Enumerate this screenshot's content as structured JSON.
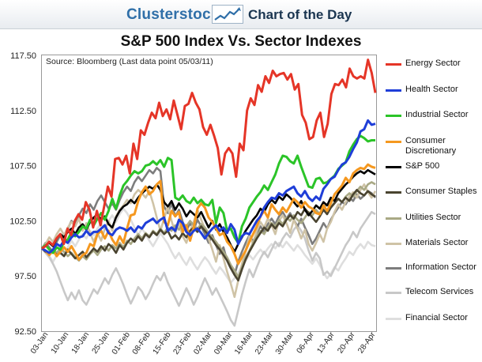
{
  "header": {
    "brand": "Clusterstock",
    "title": "Chart of the Day",
    "logo_icon": "rising-chart-icon"
  },
  "chart_data": {
    "type": "line",
    "title": "S&P 500 Index Vs. Sector Indexes",
    "source": "Source: Bloomberg (Last data point 05/03/11)",
    "xlabel": "",
    "ylabel": "",
    "ylim": [
      92.5,
      117.5
    ],
    "yticks": [
      "117.50",
      "112.50",
      "107.50",
      "102.50",
      "97.50",
      "92.50"
    ],
    "ytick_values": [
      117.5,
      112.5,
      107.5,
      102.5,
      97.5,
      92.5
    ],
    "xticks": [
      "03-Jan",
      "10-Jan",
      "18-Jan",
      "25-Jan",
      "01-Feb",
      "08-Feb",
      "15-Feb",
      "23-Feb",
      "02-Mar",
      "09-Mar",
      "16-Mar",
      "23-Mar",
      "30-Mar",
      "06-Apr",
      "13-Apr",
      "20-Apr",
      "28-Apr"
    ],
    "series": [
      {
        "name": "Energy Sector",
        "color": "#e53527",
        "width": 3,
        "values": [
          100,
          100.2,
          100.6,
          100.3,
          100.9,
          101.3,
          100.4,
          101.8,
          101.2,
          102.5,
          103.1,
          102.6,
          104.2,
          103.5,
          101.9,
          103.4,
          102.1,
          103.8,
          105.6,
          104.7,
          108.1,
          108.2,
          107.6,
          108.4,
          106.8,
          109.5,
          108.1,
          110.7,
          110.3,
          111.4,
          112.3,
          111.8,
          113.2,
          112.0,
          112.6,
          111.7,
          113.4,
          112.1,
          110.8,
          112.9,
          113.1,
          114.1,
          113.2,
          112.6,
          111.0,
          110.3,
          111.2,
          110.2,
          109.1,
          106.7,
          108.6,
          109.1,
          108.6,
          106.5,
          109.5,
          108.9,
          112.5,
          113.6,
          113.0,
          114.8,
          114.2,
          115.6,
          115.0,
          116.1,
          115.6,
          115.8,
          115.9,
          115.3,
          115.8,
          114.4,
          114.9,
          112.1,
          111.4,
          109.9,
          110.1,
          111.6,
          112.3,
          110.1,
          111.3,
          114.0,
          114.9,
          114.8,
          115.3,
          114.6,
          116.3,
          115.6,
          115.4,
          115.6,
          115.4,
          117.1,
          115.9,
          114.1
        ]
      },
      {
        "name": "Health Sector",
        "color": "#1f3ed8",
        "width": 3,
        "values": [
          100,
          99.8,
          99.6,
          99.9,
          100.4,
          100.2,
          100.7,
          100.5,
          101.0,
          101.3,
          101.0,
          101.1,
          101.6,
          101.2,
          101.5,
          101.5,
          101.8,
          102.1,
          101.4,
          101.2,
          101.7,
          101.9,
          101.8,
          101.6,
          101.9,
          101.5,
          102.0,
          101.8,
          102.3,
          102.5,
          102.7,
          102.3,
          102.6,
          102.8,
          101.6,
          101.9,
          101.6,
          102.6,
          102.3,
          101.5,
          101.2,
          101.6,
          101.8,
          101.4,
          100.9,
          101.4,
          101.8,
          102.1,
          101.6,
          101.9,
          101.4,
          102.2,
          101.7,
          100.4,
          101.1,
          101.4,
          101.3,
          101.9,
          102.5,
          102.9,
          103.7,
          104.2,
          104.6,
          104.5,
          105.0,
          104.8,
          105.2,
          105.4,
          105.6,
          105.0,
          104.7,
          105.2,
          104.6,
          104.3,
          104.7,
          104.4,
          105.4,
          105.8,
          106.3,
          106.5,
          107.1,
          107.6,
          107.8,
          108.3,
          109.0,
          109.6,
          110.6,
          110.8,
          111.6,
          111.2,
          111.3
        ]
      },
      {
        "name": "Industrial Sector",
        "color": "#2bc428",
        "width": 3,
        "values": [
          100,
          100.3,
          99.9,
          99.6,
          100.1,
          99.9,
          100.6,
          100.8,
          101.5,
          101.1,
          101.5,
          102.0,
          101.8,
          102.6,
          102.1,
          102.7,
          103.2,
          102.6,
          103.4,
          104.5,
          103.6,
          104.8,
          105.7,
          106.1,
          106.6,
          107.0,
          106.8,
          107.0,
          107.5,
          107.6,
          107.9,
          107.6,
          108.0,
          107.4,
          108.2,
          108.0,
          104.6,
          104.4,
          104.8,
          104.3,
          104.1,
          104.6,
          104.1,
          104.4,
          104.0,
          103.9,
          104.4,
          102.3,
          103.7,
          103.2,
          101.6,
          101.8,
          101.0,
          100.5,
          102.0,
          102.7,
          103.7,
          104.2,
          104.7,
          105.1,
          105.7,
          105.3,
          106.0,
          106.7,
          107.7,
          108.4,
          108.3,
          107.9,
          107.7,
          108.4,
          107.4,
          106.5,
          105.6,
          105.5,
          106.3,
          106.4,
          105.9,
          106.0,
          106.3,
          106.6,
          107.2,
          107.5,
          107.8,
          108.8,
          109.4,
          109.9,
          110.2,
          110.0,
          109.7,
          109.8,
          109.8
        ]
      },
      {
        "name": "Consumer Discretionary",
        "color": "#f5981f",
        "width": 3,
        "values": [
          100,
          99.8,
          99.4,
          99.8,
          99.3,
          99.7,
          100.1,
          99.7,
          100.2,
          99.6,
          99.0,
          99.4,
          99.6,
          100.4,
          100.2,
          101.3,
          101.6,
          100.9,
          101.6,
          100.8,
          100.3,
          101.1,
          100.5,
          101.8,
          103.0,
          103.1,
          104.3,
          105.1,
          105.6,
          104.9,
          105.2,
          105.8,
          106.1,
          102.4,
          102.1,
          103.4,
          102.9,
          103.3,
          101.5,
          102.1,
          100.7,
          101.9,
          103.6,
          104.1,
          103.7,
          102.8,
          102.4,
          101.8,
          101.2,
          101.4,
          100.6,
          100.2,
          99.5,
          98.6,
          99.2,
          99.8,
          100.6,
          101.3,
          102.0,
          102.9,
          103.4,
          102.8,
          104.0,
          103.5,
          103.1,
          103.7,
          103.3,
          103.9,
          104.5,
          104.2,
          103.7,
          104.2,
          103.8,
          103.6,
          103.2,
          103.1,
          103.9,
          103.4,
          104.1,
          104.9,
          105.3,
          105.7,
          106.4,
          106.0,
          106.8,
          107.1,
          107.3,
          107.2,
          107.6,
          107.4,
          107.3
        ]
      },
      {
        "name": "S&P 500",
        "color": "#000000",
        "width": 2.6,
        "values": [
          100,
          100.3,
          100.5,
          100.2,
          100.9,
          101.3,
          101.0,
          101.5,
          101.8,
          101.3,
          101.9,
          102.2,
          101.7,
          102.4,
          102.8,
          103.1,
          102.6,
          102.9,
          102.2,
          101.9,
          102.8,
          103.4,
          103.8,
          104.0,
          104.4,
          104.1,
          104.6,
          105.0,
          105.3,
          105.6,
          105.4,
          105.8,
          105.3,
          104.2,
          103.8,
          104.3,
          103.5,
          104.1,
          103.6,
          102.9,
          103.4,
          103.1,
          102.8,
          103.3,
          102.6,
          101.9,
          102.5,
          101.7,
          102.2,
          101.5,
          101.0,
          100.3,
          99.7,
          100.4,
          101.0,
          101.6,
          102.1,
          102.6,
          103.0,
          103.6,
          103.3,
          104.0,
          104.4,
          104.1,
          104.7,
          104.4,
          104.9,
          104.6,
          104.2,
          103.8,
          104.3,
          103.5,
          103.0,
          103.4,
          103.9,
          103.6,
          104.2,
          103.9,
          104.6,
          104.3,
          105.0,
          105.4,
          105.8,
          106.1,
          106.5,
          106.8,
          107.0,
          106.8,
          107.1,
          106.9,
          106.7
        ]
      },
      {
        "name": "Consumer Staples",
        "color": "#4a4430",
        "width": 2.6,
        "values": [
          100,
          99.7,
          99.5,
          99.8,
          99.4,
          99.6,
          99.3,
          99.9,
          99.5,
          99.1,
          99.4,
          99.7,
          99.2,
          99.6,
          100.0,
          99.7,
          100.2,
          99.8,
          100.4,
          100.1,
          99.6,
          100.3,
          99.9,
          100.5,
          100.9,
          100.6,
          101.1,
          100.7,
          101.3,
          101.0,
          101.5,
          101.2,
          101.7,
          101.3,
          101.6,
          100.9,
          101.2,
          100.8,
          101.4,
          101.0,
          101.6,
          101.9,
          101.5,
          102.0,
          101.6,
          101.2,
          100.8,
          100.3,
          99.9,
          99.4,
          98.9,
          98.2,
          97.6,
          97.1,
          98.1,
          99.0,
          99.7,
          100.3,
          100.9,
          101.4,
          101.9,
          101.6,
          102.2,
          101.8,
          102.3,
          102.0,
          102.6,
          103.0,
          102.7,
          103.3,
          103.0,
          103.6,
          103.2,
          102.8,
          102.4,
          102.9,
          103.5,
          103.1,
          103.7,
          104.1,
          104.5,
          104.2,
          104.6,
          104.3,
          104.9,
          105.3,
          105.0,
          104.8,
          105.2,
          104.9,
          104.7
        ]
      },
      {
        "name": "Utilities Sector",
        "color": "#a9a985",
        "width": 2.6,
        "values": [
          100,
          99.8,
          99.5,
          99.9,
          99.6,
          100.0,
          99.7,
          99.3,
          99.6,
          99.2,
          98.9,
          99.3,
          99.0,
          99.5,
          99.8,
          99.4,
          99.9,
          100.2,
          99.8,
          100.3,
          100.0,
          100.5,
          100.1,
          100.7,
          100.4,
          100.9,
          101.3,
          100.9,
          101.4,
          101.1,
          101.6,
          101.3,
          101.8,
          101.4,
          101.9,
          101.6,
          102.1,
          101.7,
          102.3,
          102.0,
          102.5,
          102.1,
          101.8,
          102.2,
          101.9,
          101.4,
          101.0,
          100.6,
          100.1,
          99.7,
          99.2,
          98.5,
          98.0,
          97.4,
          98.3,
          99.2,
          99.8,
          100.5,
          101.1,
          101.6,
          101.3,
          101.9,
          102.3,
          102.0,
          102.6,
          102.2,
          102.8,
          102.5,
          103.0,
          102.6,
          102.3,
          102.8,
          103.3,
          103.0,
          103.5,
          103.1,
          103.7,
          104.0,
          103.7,
          104.2,
          104.5,
          104.2,
          104.7,
          105.0,
          104.7,
          105.2,
          105.6,
          105.3,
          105.8,
          106.0,
          105.8
        ]
      },
      {
        "name": "Materials Sector",
        "color": "#cfc3a6",
        "width": 2.6,
        "values": [
          100,
          100.4,
          101.0,
          100.6,
          101.3,
          101.8,
          101.2,
          101.9,
          102.4,
          102.0,
          102.7,
          101.6,
          102.3,
          101.4,
          100.6,
          101.4,
          100.7,
          101.8,
          102.5,
          101.6,
          102.9,
          103.5,
          103.9,
          104.4,
          104.1,
          104.9,
          105.3,
          105.0,
          104.6,
          105.2,
          104.1,
          102.8,
          101.6,
          102.7,
          103.8,
          102.5,
          101.4,
          102.3,
          101.1,
          100.5,
          101.6,
          102.4,
          103.5,
          102.6,
          101.8,
          100.9,
          99.9,
          98.8,
          100.3,
          99.1,
          97.9,
          96.8,
          95.6,
          97.1,
          98.6,
          99.8,
          101.1,
          100.4,
          101.6,
          102.4,
          101.9,
          102.7,
          102.1,
          101.3,
          102.5,
          103.0,
          102.3,
          101.4,
          102.6,
          101.8,
          100.9,
          101.7,
          100.4,
          99.8,
          100.5,
          101.3,
          100.6,
          101.8,
          102.4,
          103.3,
          104.0,
          103.5,
          104.2,
          104.7,
          105.1,
          104.6,
          105.3,
          105.8,
          105.1,
          104.6,
          105.2
        ]
      },
      {
        "name": "Information Sector",
        "color": "#7d7d7d",
        "width": 2.6,
        "values": [
          100,
          100.5,
          100.1,
          99.7,
          100.6,
          101.2,
          100.8,
          101.8,
          102.5,
          102.1,
          103.0,
          103.6,
          103.2,
          104.0,
          103.5,
          104.3,
          104.8,
          104.2,
          103.6,
          104.1,
          103.5,
          104.4,
          105.1,
          105.6,
          105.2,
          106.0,
          106.5,
          106.1,
          106.6,
          107.1,
          106.8,
          107.3,
          107.0,
          103.8,
          103.2,
          104.1,
          102.9,
          103.5,
          102.4,
          101.6,
          102.3,
          101.7,
          102.6,
          102.0,
          101.3,
          100.5,
          101.2,
          100.3,
          99.5,
          100.1,
          98.9,
          98.2,
          97.6,
          98.8,
          99.7,
          100.5,
          101.2,
          100.6,
          101.4,
          102.0,
          101.5,
          102.2,
          102.7,
          102.2,
          102.9,
          103.3,
          102.7,
          103.2,
          102.6,
          102.0,
          102.7,
          101.9,
          101.2,
          100.4,
          100.9,
          101.6,
          102.3,
          101.8,
          102.6,
          103.2,
          103.7,
          104.2,
          104.0,
          104.6,
          104.3,
          104.9,
          104.5,
          104.8,
          105.2,
          105.0,
          104.6
        ]
      },
      {
        "name": "Telecom Services",
        "color": "#c8c8c8",
        "width": 2.6,
        "values": [
          100,
          99.6,
          99.2,
          98.6,
          97.9,
          97.0,
          96.1,
          95.3,
          96.0,
          95.4,
          96.2,
          95.3,
          94.9,
          95.6,
          96.3,
          95.9,
          96.6,
          97.3,
          96.8,
          97.6,
          98.2,
          97.5,
          96.7,
          95.8,
          95.0,
          95.7,
          96.5,
          96.1,
          95.4,
          96.0,
          96.8,
          97.5,
          97.1,
          97.8,
          96.9,
          96.2,
          95.5,
          94.8,
          95.6,
          96.4,
          95.7,
          94.9,
          95.6,
          96.5,
          97.3,
          96.6,
          95.8,
          96.4,
          95.7,
          95.0,
          94.3,
          93.5,
          93.0,
          94.4,
          95.8,
          97.0,
          98.1,
          97.4,
          98.3,
          99.1,
          99.7,
          99.2,
          99.9,
          100.6,
          100.2,
          100.9,
          101.4,
          101.0,
          101.7,
          102.1,
          101.6,
          100.9,
          99.8,
          98.9,
          99.6,
          99.1,
          97.6,
          97.9,
          97.5,
          98.2,
          98.9,
          99.6,
          100.3,
          100.8,
          101.5,
          101.0,
          101.8,
          102.3,
          102.8,
          103.3,
          103.1
        ]
      },
      {
        "name": "Financial Sector",
        "color": "#dedede",
        "width": 2.6,
        "values": [
          100,
          99.7,
          99.3,
          98.8,
          99.4,
          100.0,
          99.5,
          100.1,
          100.7,
          100.2,
          100.8,
          101.3,
          100.9,
          101.6,
          101.2,
          101.8,
          102.3,
          101.7,
          102.5,
          103.0,
          102.4,
          103.1,
          103.6,
          103.2,
          102.6,
          101.9,
          101.2,
          101.8,
          101.3,
          100.7,
          100.2,
          100.8,
          101.4,
          100.9,
          100.4,
          99.7,
          99.1,
          99.6,
          99.0,
          98.5,
          99.2,
          98.6,
          98.1,
          98.7,
          99.2,
          98.8,
          98.2,
          97.7,
          98.3,
          97.9,
          97.4,
          96.9,
          97.3,
          97.8,
          98.4,
          98.9,
          99.4,
          99.0,
          99.5,
          99.9,
          99.5,
          100.0,
          100.4,
          100.0,
          100.5,
          100.1,
          100.6,
          100.2,
          99.8,
          100.3,
          99.9,
          99.4,
          99.0,
          98.6,
          99.1,
          98.5,
          97.8,
          97.3,
          97.7,
          98.3,
          98.0,
          98.6,
          99.1,
          99.7,
          99.4,
          100.0,
          100.4,
          100.0,
          100.6,
          100.3,
          100.2
        ]
      }
    ]
  }
}
